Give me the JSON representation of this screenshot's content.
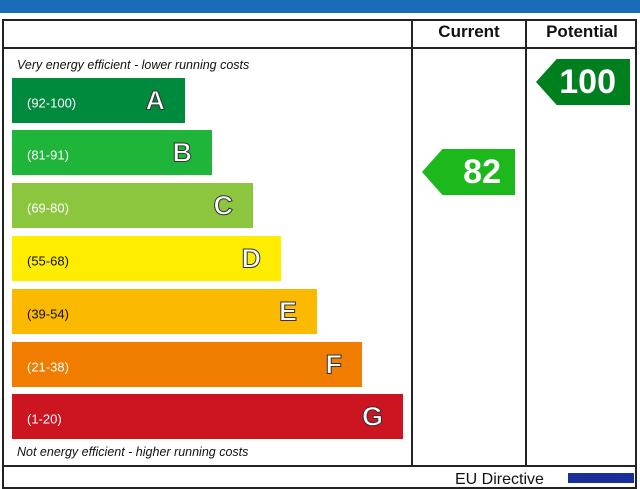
{
  "header": {
    "current": "Current",
    "potential": "Potential"
  },
  "notes": {
    "top": "Very energy efficient - lower running costs",
    "bottom": "Not energy efficient - higher running costs"
  },
  "bands": [
    {
      "range": "(92-100)",
      "letter": "A",
      "color": "#008a3e"
    },
    {
      "range": "(81-91)",
      "letter": "B",
      "color": "#1fb53a"
    },
    {
      "range": "(69-80)",
      "letter": "C",
      "color": "#8cc63f"
    },
    {
      "range": "(55-68)",
      "letter": "D",
      "color": "#ffed00"
    },
    {
      "range": "(39-54)",
      "letter": "E",
      "color": "#fbb900"
    },
    {
      "range": "(21-38)",
      "letter": "F",
      "color": "#f07d00"
    },
    {
      "range": "(1-20)",
      "letter": "G",
      "color": "#cc1520"
    }
  ],
  "ratings": {
    "current": {
      "value": "82",
      "band": "B",
      "color": "#1cb81c"
    },
    "potential": {
      "value": "100",
      "band": "A",
      "color": "#007f1e"
    }
  },
  "footer": {
    "label": "EU Directive",
    "flag_icon": "eu-flag-icon"
  }
}
